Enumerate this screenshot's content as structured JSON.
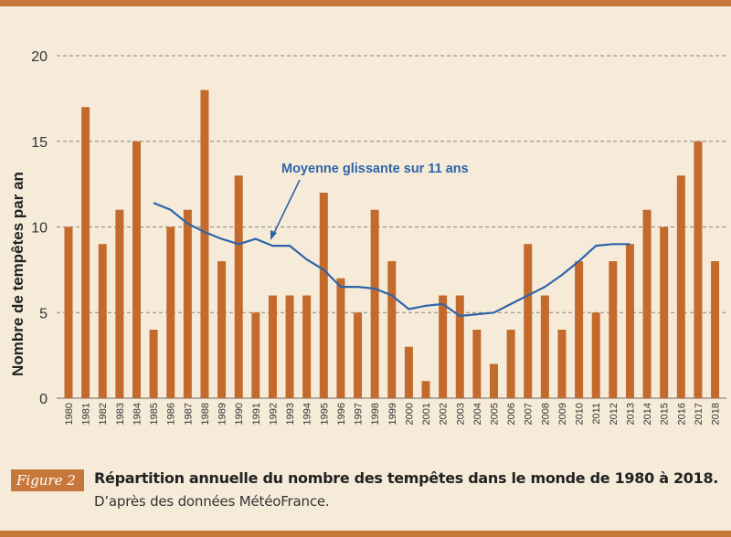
{
  "colors": {
    "frame": "#c8773a",
    "bar": "#c36a2c",
    "line": "#2f64a8",
    "annotation": "#2f64a8",
    "grid": "#8a8378",
    "text": "#222222"
  },
  "figure": {
    "tag": "Figure 2",
    "title": "Répartition annuelle du nombre des tempêtes dans le monde de 1980 à 2018.",
    "source": "D’après des données MétéoFrance."
  },
  "chart_data": {
    "type": "bar",
    "ylabel": "Nombre de tempêtes par an",
    "xlabel": "",
    "ylim": [
      0,
      20
    ],
    "yticks": [
      0,
      5,
      10,
      15,
      20
    ],
    "grid": true,
    "categories": [
      "1980",
      "1981",
      "1982",
      "1983",
      "1984",
      "1985",
      "1986",
      "1987",
      "1988",
      "1989",
      "1990",
      "1991",
      "1992",
      "1993",
      "1994",
      "1995",
      "1996",
      "1997",
      "1998",
      "1999",
      "2000",
      "2001",
      "2002",
      "2003",
      "2004",
      "2005",
      "2006",
      "2007",
      "2008",
      "2009",
      "2010",
      "2011",
      "2012",
      "2013",
      "2014",
      "2015",
      "2016",
      "2017",
      "2018"
    ],
    "values": [
      10,
      17,
      9,
      11,
      15,
      4,
      10,
      11,
      18,
      8,
      13,
      5,
      6,
      6,
      6,
      12,
      7,
      5,
      11,
      8,
      3,
      1,
      6,
      6,
      4,
      2,
      4,
      9,
      6,
      4,
      8,
      5,
      8,
      9,
      11,
      10,
      13,
      15,
      8
    ],
    "moving_average": {
      "name": "Moyenne glissante sur 11 ans",
      "x": [
        "1985",
        "1986",
        "1987",
        "1988",
        "1989",
        "1990",
        "1991",
        "1992",
        "1993",
        "1994",
        "1995",
        "1996",
        "1997",
        "1998",
        "1999",
        "2000",
        "2001",
        "2002",
        "2003",
        "2004",
        "2005",
        "2006",
        "2007",
        "2008",
        "2009",
        "2010",
        "2011",
        "2012",
        "2013"
      ],
      "values": [
        11.4,
        11.0,
        10.2,
        9.7,
        9.3,
        9.0,
        9.3,
        8.9,
        8.9,
        8.1,
        7.5,
        6.5,
        6.5,
        6.4,
        6.0,
        5.2,
        5.4,
        5.5,
        4.8,
        4.9,
        5.0,
        5.5,
        6.0,
        6.5,
        7.2,
        8.0,
        8.9,
        9.0,
        9.0
      ]
    }
  }
}
